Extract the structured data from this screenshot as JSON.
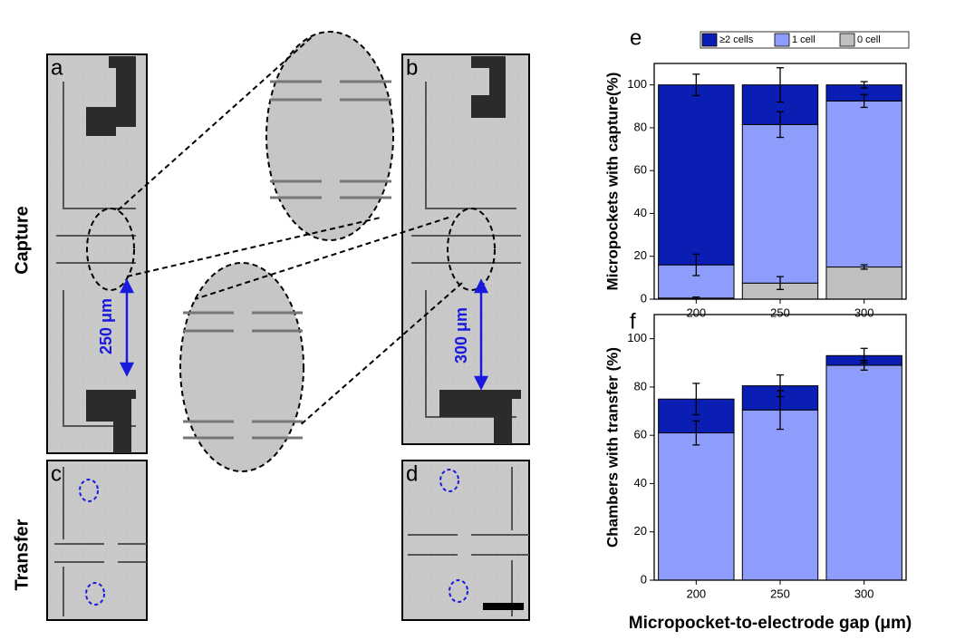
{
  "figure": {
    "panels": [
      "a",
      "b",
      "c",
      "d"
    ],
    "rows": [
      "Capture",
      "Transfer"
    ],
    "distance_a": "250 μm",
    "distance_b": "300 μm"
  },
  "chart_data": [
    {
      "type": "stacked-bar",
      "panel": "e",
      "ylabel": "Micropockets with capture(%)",
      "categories": [
        "200",
        "250",
        "300"
      ],
      "series": [
        {
          "name": "≥2 cells",
          "color": "#0a1eb4",
          "values": [
            84,
            18.5,
            7.5
          ],
          "errors": [
            5,
            8,
            1.5
          ]
        },
        {
          "name": "1 cell",
          "color": "#8e9dfb",
          "values": [
            15.5,
            74,
            77.5
          ],
          "errors": [
            5,
            6,
            3
          ]
        },
        {
          "name": "0 cell",
          "color": "#c0c0c0",
          "values": [
            0.5,
            7.5,
            15
          ],
          "errors": [
            0.5,
            3,
            1
          ]
        }
      ],
      "ylim": [
        0,
        110
      ],
      "yticks": [
        0,
        20,
        40,
        60,
        80,
        100
      ],
      "legend": "top"
    },
    {
      "type": "stacked-bar",
      "panel": "f",
      "ylabel": "Chambers with transfer (%)",
      "xlabel": "Micropocket-to-electrode gap (μm)",
      "categories": [
        "200",
        "250",
        "300"
      ],
      "series": [
        {
          "name": "≥2 cells",
          "color": "#0a1eb4",
          "values": [
            14,
            10,
            4
          ],
          "errors": [
            6.5,
            4.5,
            3
          ]
        },
        {
          "name": "1 cell",
          "color": "#8e9dfb",
          "values": [
            61,
            70.5,
            89
          ],
          "errors": [
            5,
            8,
            2
          ]
        }
      ],
      "ylim": [
        0,
        110
      ],
      "yticks": [
        0,
        20,
        40,
        60,
        80,
        100
      ],
      "legend": false
    }
  ]
}
